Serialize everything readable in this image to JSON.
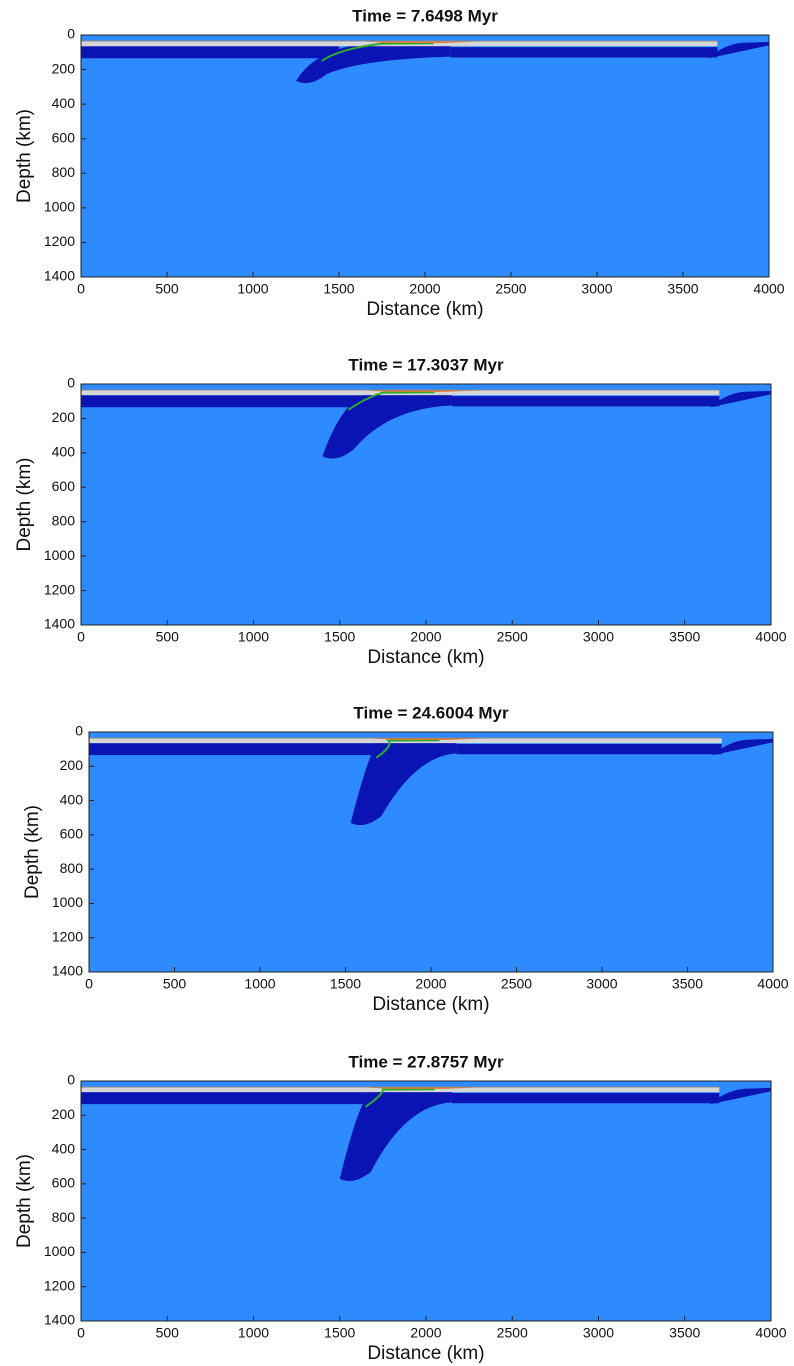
{
  "chart_data": [
    {
      "type": "field",
      "title": "Time = 7.6498 Myr",
      "xlabel": "Distance (km)",
      "ylabel": "Depth (km)",
      "xlim": [
        0,
        4000
      ],
      "ylim": [
        0,
        1400
      ],
      "y_inverted": true,
      "xticks": [
        0,
        500,
        1000,
        1500,
        2000,
        2500,
        3000,
        3500,
        4000
      ],
      "yticks": [
        0,
        200,
        400,
        600,
        800,
        1000,
        1200,
        1400
      ]
    },
    {
      "type": "field",
      "title": "Time = 17.3037 Myr",
      "xlabel": "Distance (km)",
      "ylabel": "Depth (km)",
      "xlim": [
        0,
        4000
      ],
      "ylim": [
        0,
        1400
      ],
      "y_inverted": true,
      "xticks": [
        0,
        500,
        1000,
        1500,
        2000,
        2500,
        3000,
        3500,
        4000
      ],
      "yticks": [
        0,
        200,
        400,
        600,
        800,
        1000,
        1200,
        1400
      ]
    },
    {
      "type": "field",
      "title": "Time = 24.6004 Myr",
      "xlabel": "Distance (km)",
      "ylabel": "Depth (km)",
      "xlim": [
        0,
        4000
      ],
      "ylim": [
        0,
        1400
      ],
      "y_inverted": true,
      "xticks": [
        0,
        500,
        1000,
        1500,
        2000,
        2500,
        3000,
        3500,
        4000
      ],
      "yticks": [
        0,
        200,
        400,
        600,
        800,
        1000,
        1200,
        1400
      ]
    },
    {
      "type": "field",
      "title": "Time = 27.8757 Myr",
      "xlabel": "Distance (km)",
      "ylabel": "Depth (km)",
      "xlim": [
        0,
        4000
      ],
      "ylim": [
        0,
        1400
      ],
      "y_inverted": true,
      "xticks": [
        0,
        500,
        1000,
        1500,
        2000,
        2500,
        3000,
        3500,
        4000
      ],
      "yticks": [
        0,
        200,
        400,
        600,
        800,
        1000,
        1200,
        1400
      ]
    }
  ]
}
